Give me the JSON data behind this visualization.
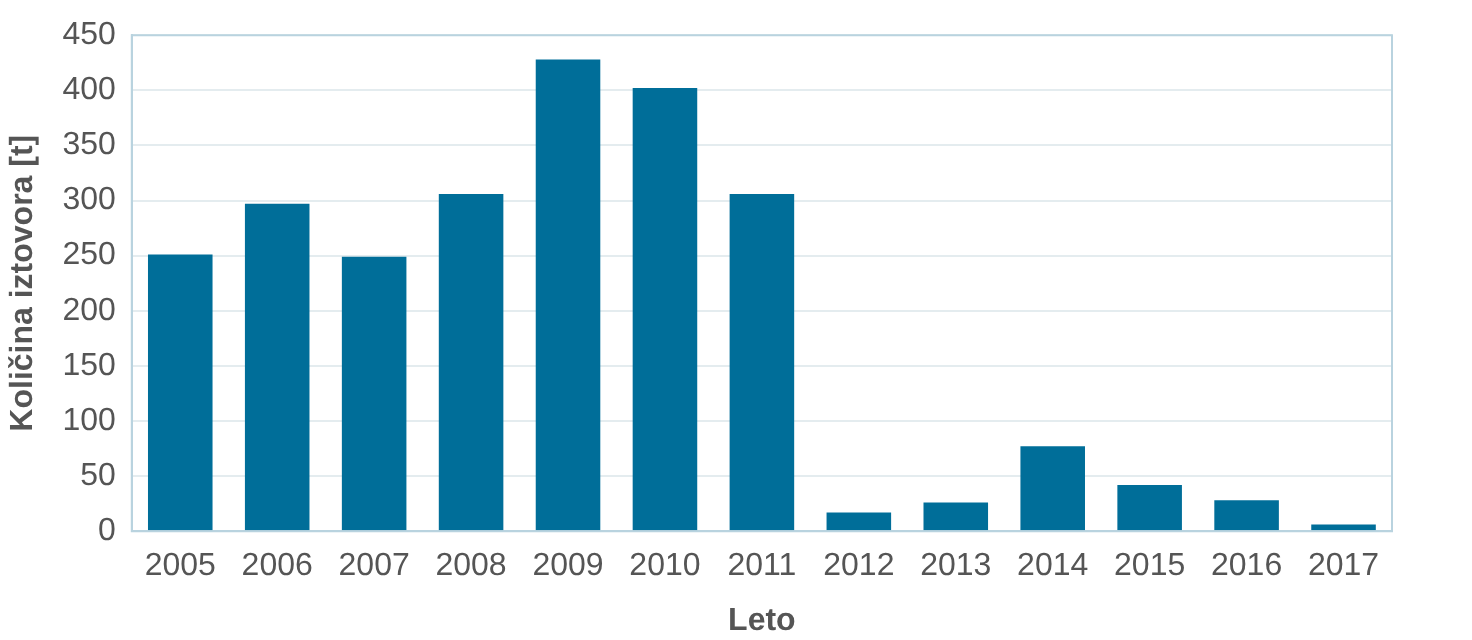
{
  "chart_data": {
    "type": "bar",
    "xlabel": "Leto",
    "ylabel": "Količina iztovora [t]",
    "categories": [
      "2005",
      "2006",
      "2007",
      "2008",
      "2009",
      "2010",
      "2011",
      "2012",
      "2013",
      "2014",
      "2015",
      "2016",
      "2017"
    ],
    "values": [
      251,
      297,
      249,
      306,
      428,
      402,
      306,
      17,
      26,
      77,
      42,
      28,
      6
    ],
    "color": "#006e99",
    "ylim": [
      0,
      450
    ],
    "yticks": [
      0,
      50,
      100,
      150,
      200,
      250,
      300,
      350,
      400,
      450
    ],
    "grid": "y"
  }
}
